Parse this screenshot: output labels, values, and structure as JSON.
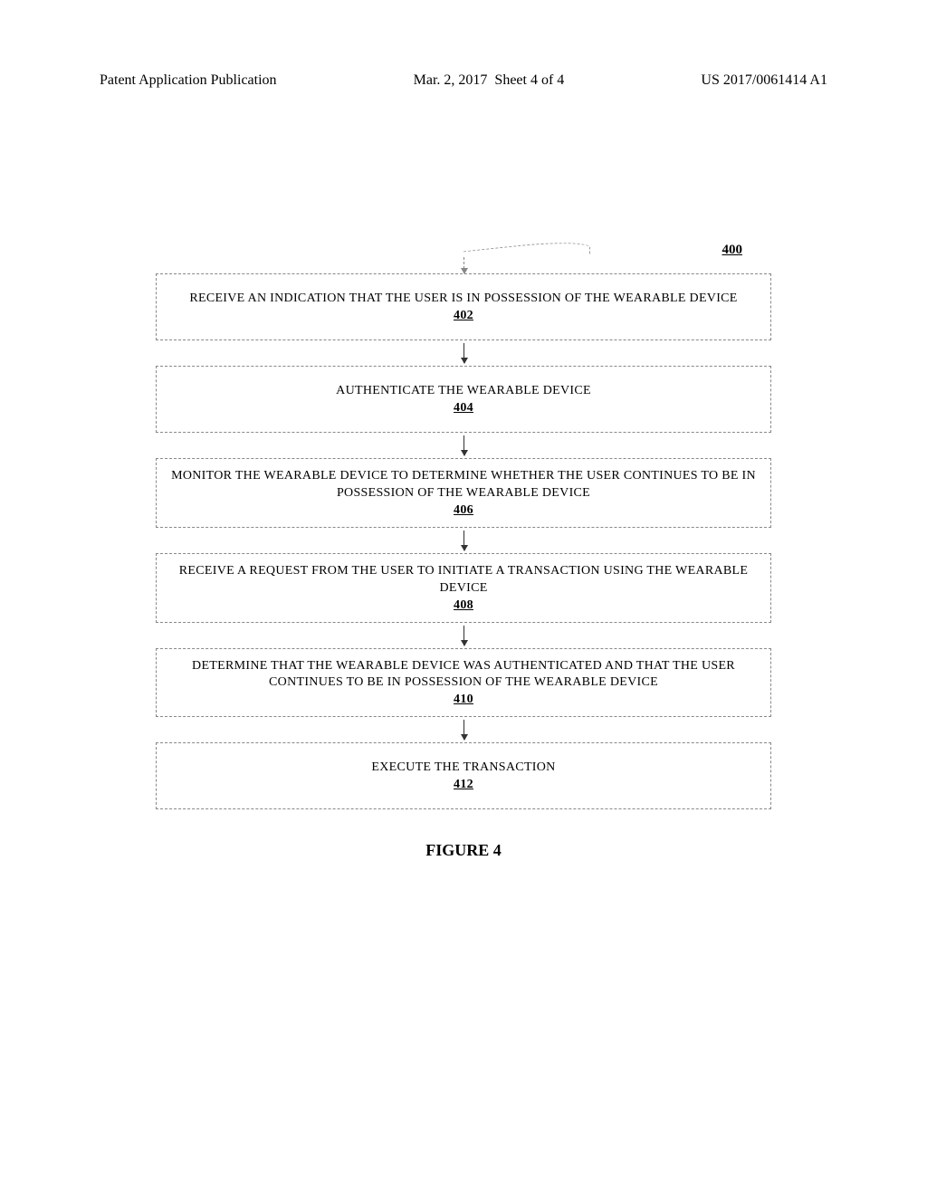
{
  "header": {
    "left": "Patent Application Publication",
    "date": "Mar. 2, 2017",
    "sheet": "Sheet 4 of 4",
    "pubnum": "US 2017/0061414 A1"
  },
  "figure": {
    "ref": "400",
    "caption": "FIGURE 4",
    "box_border_color": "#888888",
    "arrow_color": "#333333",
    "background_color": "#ffffff",
    "font_family": "Times New Roman",
    "box_fontsize": 14,
    "caption_fontsize": 18,
    "steps": [
      {
        "text": "RECEIVE AN INDICATION THAT THE USER IS IN POSSESSION OF THE WEARABLE DEVICE",
        "num": "402"
      },
      {
        "text": "AUTHENTICATE THE WEARABLE DEVICE",
        "num": "404"
      },
      {
        "text": "MONITOR THE WEARABLE DEVICE TO DETERMINE WHETHER THE USER CONTINUES TO BE IN POSSESSION OF THE WEARABLE DEVICE",
        "num": "406"
      },
      {
        "text": "RECEIVE A REQUEST FROM THE USER TO INITIATE A TRANSACTION USING THE WEARABLE DEVICE",
        "num": "408"
      },
      {
        "text": "DETERMINE THAT THE WEARABLE DEVICE WAS AUTHENTICATED AND THAT THE USER CONTINUES TO BE IN POSSESSION OF THE WEARABLE DEVICE",
        "num": "410"
      },
      {
        "text": "EXECUTE THE TRANSACTION",
        "num": "412"
      }
    ]
  }
}
